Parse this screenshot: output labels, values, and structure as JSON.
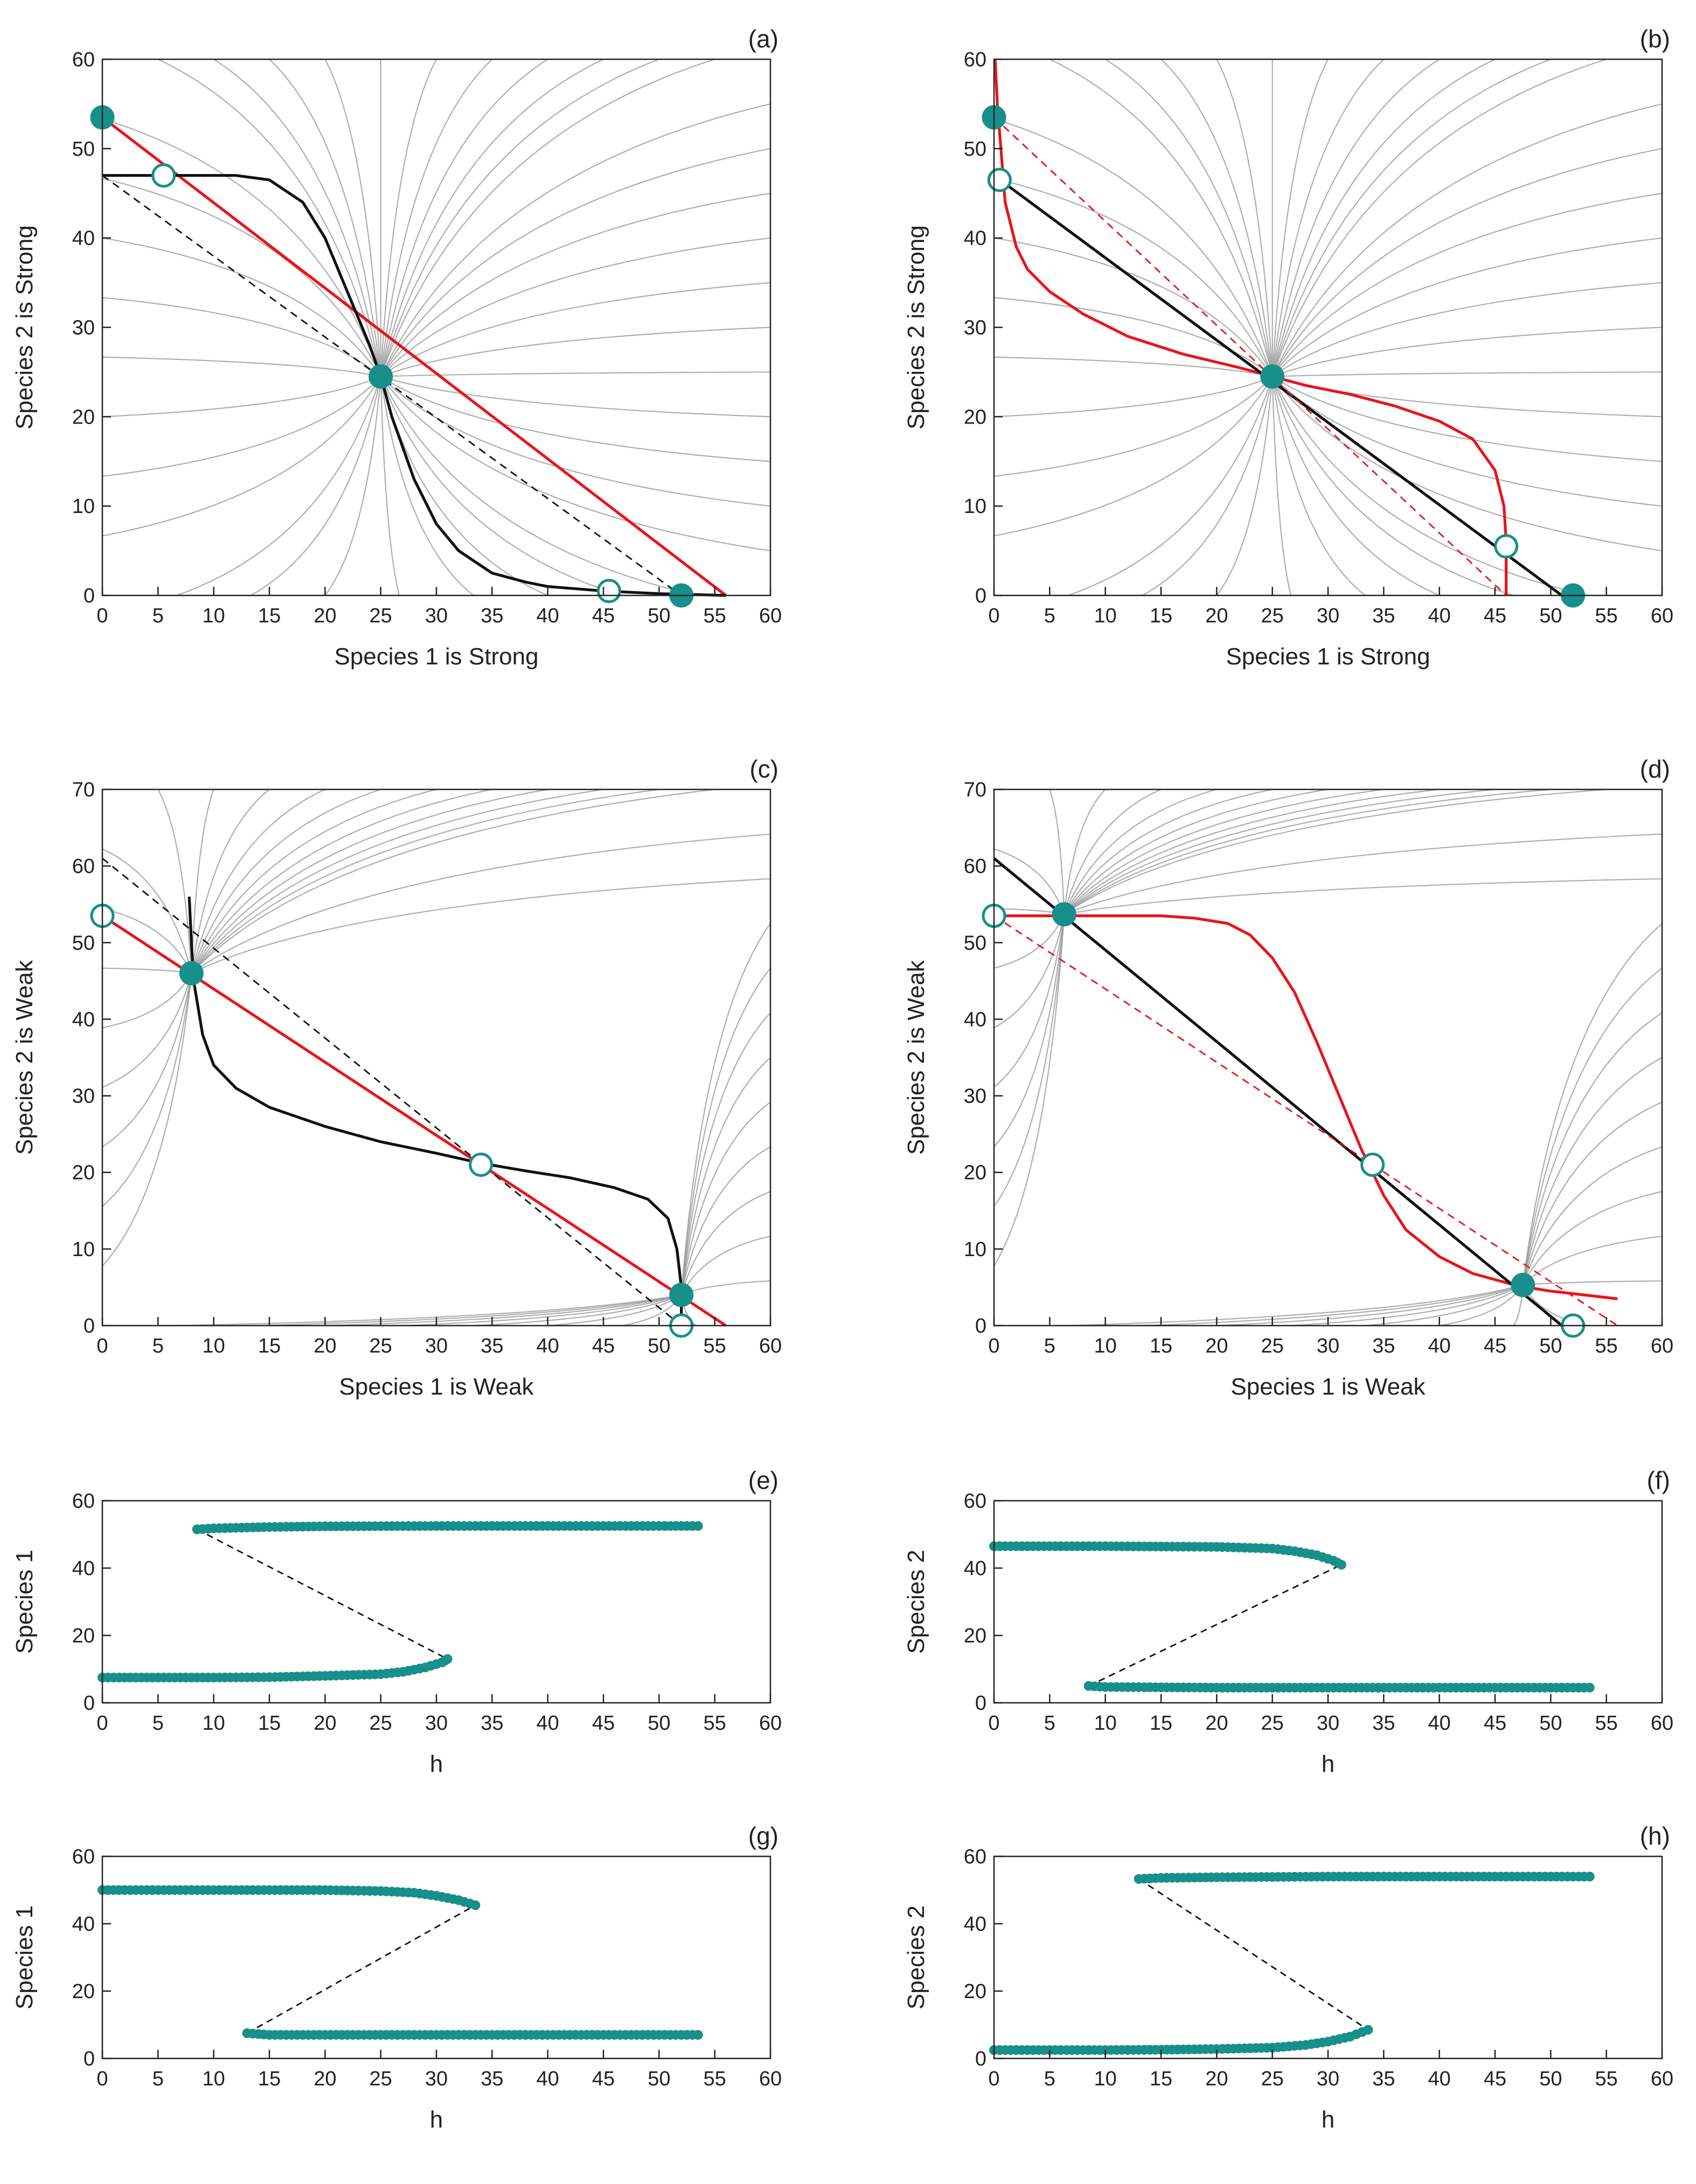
{
  "figure": {
    "colors": {
      "nullcline_red": "#e8141c",
      "nullcline_black": "#111111",
      "trajectory": "#9a9a9a",
      "equilibrium": "#178f8a",
      "dashed": "#111111"
    }
  },
  "chart_data": [
    {
      "id": "a",
      "panel_label": "(a)",
      "type": "line",
      "xlabel": "Species 1 is Strong",
      "ylabel": "Species 2 is Strong",
      "xlim": [
        0,
        60
      ],
      "ylim": [
        0,
        60
      ],
      "xticks": [
        "0",
        "5",
        "10",
        "15",
        "20",
        "25",
        "30",
        "35",
        "40",
        "45",
        "50",
        "55",
        "60"
      ],
      "yticks": [
        "0",
        "10",
        "20",
        "30",
        "40",
        "50",
        "60"
      ],
      "series": [
        {
          "name": "species-1-nullcline",
          "color": "#e8141c",
          "style": "solid",
          "x": [
            0,
            56
          ],
          "y": [
            53.5,
            0
          ]
        },
        {
          "name": "species-2-nullcline",
          "color": "#111111",
          "style": "solid",
          "x": [
            0,
            5,
            10,
            12,
            15,
            18,
            20,
            22,
            24,
            25,
            26,
            28,
            30,
            32,
            35,
            38,
            40,
            45,
            50,
            56
          ],
          "y": [
            47,
            47,
            47,
            47,
            46.5,
            44,
            40,
            34,
            28,
            24.5,
            20,
            13,
            8,
            5,
            2.5,
            1.5,
            1,
            0.5,
            0.2,
            0
          ]
        },
        {
          "name": "reference-line",
          "color": "#111111",
          "style": "dashed",
          "x": [
            0,
            52
          ],
          "y": [
            47,
            0
          ]
        }
      ],
      "equilibria": [
        {
          "x": 0,
          "y": 53.5,
          "stable": true
        },
        {
          "x": 5.5,
          "y": 47,
          "stable": false
        },
        {
          "x": 25,
          "y": 24.5,
          "stable": true
        },
        {
          "x": 45.5,
          "y": 0.5,
          "stable": false
        },
        {
          "x": 52,
          "y": 0,
          "stable": true
        }
      ],
      "trajectories": "converging"
    },
    {
      "id": "b",
      "panel_label": "(b)",
      "type": "line",
      "xlabel": "Species 1 is Strong",
      "ylabel": "Species 2 is Strong",
      "xlim": [
        0,
        60
      ],
      "ylim": [
        0,
        60
      ],
      "xticks": [
        "0",
        "5",
        "10",
        "15",
        "20",
        "25",
        "30",
        "35",
        "40",
        "45",
        "50",
        "55",
        "60"
      ],
      "yticks": [
        "0",
        "10",
        "20",
        "30",
        "40",
        "50",
        "60"
      ],
      "series": [
        {
          "name": "species-1-nullcline",
          "color": "#e8141c",
          "style": "solid",
          "x": [
            0.1,
            0.3,
            1,
            2,
            3,
            5,
            8,
            12,
            17,
            22,
            25,
            28,
            32,
            36,
            40,
            43,
            45,
            45.8,
            46,
            46,
            46
          ],
          "y": [
            60,
            55,
            44,
            39,
            36.5,
            34,
            31.5,
            29,
            27,
            25.5,
            24.5,
            23.5,
            22.5,
            21.2,
            19.5,
            17.5,
            14,
            10,
            6,
            2,
            0
          ]
        },
        {
          "name": "species-2-nullcline",
          "color": "#111111",
          "style": "solid",
          "x": [
            0,
            51
          ],
          "y": [
            47,
            0
          ]
        },
        {
          "name": "reference-line",
          "color": "#e8141c",
          "style": "dashed",
          "x": [
            0,
            46
          ],
          "y": [
            53.5,
            0
          ]
        }
      ],
      "equilibria": [
        {
          "x": 0,
          "y": 53.5,
          "stable": true
        },
        {
          "x": 0.5,
          "y": 46.5,
          "stable": false
        },
        {
          "x": 25,
          "y": 24.5,
          "stable": true
        },
        {
          "x": 46,
          "y": 5.5,
          "stable": false
        },
        {
          "x": 52,
          "y": 0,
          "stable": true
        }
      ],
      "trajectories": "converging"
    },
    {
      "id": "c",
      "panel_label": "(c)",
      "type": "line",
      "xlabel": "Species 1 is Weak",
      "ylabel": "Species 2 is Weak",
      "xlim": [
        0,
        60
      ],
      "ylim": [
        0,
        70
      ],
      "xticks": [
        "0",
        "5",
        "10",
        "15",
        "20",
        "25",
        "30",
        "35",
        "40",
        "45",
        "50",
        "55",
        "60"
      ],
      "yticks": [
        "0",
        "10",
        "20",
        "30",
        "40",
        "50",
        "60",
        "70"
      ],
      "series": [
        {
          "name": "species-1-nullcline",
          "color": "#e8141c",
          "style": "solid",
          "x": [
            0,
            56
          ],
          "y": [
            53.5,
            0
          ]
        },
        {
          "name": "species-2-nullcline",
          "color": "#111111",
          "style": "solid",
          "x": [
            7.8,
            8,
            8.2,
            9,
            10,
            12,
            15,
            20,
            25,
            30,
            34,
            38,
            42,
            46,
            49,
            50.8,
            51.6,
            52,
            52
          ],
          "y": [
            56,
            50,
            45,
            38,
            34,
            31,
            28.5,
            26,
            24,
            22.5,
            21.2,
            20.2,
            19.3,
            18,
            16.5,
            14,
            10,
            5,
            0
          ]
        },
        {
          "name": "reference-line",
          "color": "#111111",
          "style": "dashed",
          "x": [
            0,
            52
          ],
          "y": [
            61,
            0
          ]
        }
      ],
      "equilibria": [
        {
          "x": 0,
          "y": 53.5,
          "stable": false
        },
        {
          "x": 8,
          "y": 46,
          "stable": true
        },
        {
          "x": 34,
          "y": 21,
          "stable": false
        },
        {
          "x": 52,
          "y": 0,
          "stable": false
        },
        {
          "x": 52,
          "y": 4,
          "stable": true
        }
      ],
      "trajectories": "converging"
    },
    {
      "id": "d",
      "panel_label": "(d)",
      "type": "line",
      "xlabel": "Species 1 is Weak",
      "ylabel": "Species 2 is Weak",
      "xlim": [
        0,
        60
      ],
      "ylim": [
        0,
        70
      ],
      "xticks": [
        "0",
        "5",
        "10",
        "15",
        "20",
        "25",
        "30",
        "35",
        "40",
        "45",
        "50",
        "55",
        "60"
      ],
      "yticks": [
        "0",
        "10",
        "20",
        "30",
        "40",
        "50",
        "60",
        "70"
      ],
      "series": [
        {
          "name": "species-1-nullcline",
          "color": "#e8141c",
          "style": "solid",
          "x": [
            0,
            5,
            10,
            15,
            18,
            21,
            23,
            25,
            27,
            29,
            31,
            33,
            35,
            37,
            40,
            43,
            47,
            50,
            53,
            56
          ],
          "y": [
            53.5,
            53.5,
            53.5,
            53.5,
            53.2,
            52.5,
            51,
            48,
            43.5,
            37,
            30,
            23,
            17,
            12.5,
            9,
            6.8,
            5.2,
            4.5,
            4,
            3.5
          ]
        },
        {
          "name": "species-2-nullcline",
          "color": "#111111",
          "style": "solid",
          "x": [
            0,
            51
          ],
          "y": [
            61,
            0
          ]
        },
        {
          "name": "reference-line",
          "color": "#e8141c",
          "style": "dashed",
          "x": [
            0,
            56
          ],
          "y": [
            53.5,
            0
          ]
        }
      ],
      "equilibria": [
        {
          "x": 0,
          "y": 53.5,
          "stable": false
        },
        {
          "x": 6.3,
          "y": 53.7,
          "stable": true
        },
        {
          "x": 34,
          "y": 21,
          "stable": false
        },
        {
          "x": 47.5,
          "y": 5.3,
          "stable": true
        },
        {
          "x": 52,
          "y": 0,
          "stable": false
        }
      ],
      "trajectories": "converging"
    },
    {
      "id": "e",
      "panel_label": "(e)",
      "type": "scatter",
      "xlabel": "h",
      "ylabel": "Species 1",
      "xlim": [
        0,
        60
      ],
      "ylim": [
        0,
        60
      ],
      "xticks": [
        "0",
        "5",
        "10",
        "15",
        "20",
        "25",
        "30",
        "35",
        "40",
        "45",
        "50",
        "55",
        "60"
      ],
      "yticks": [
        "0",
        "20",
        "40",
        "60"
      ],
      "branches": [
        {
          "name": "lower-branch",
          "x": [
            0,
            5,
            10,
            15,
            20,
            25,
            27,
            29,
            30.5,
            31
          ],
          "y": [
            7.5,
            7.5,
            7.5,
            7.6,
            8,
            8.5,
            9.2,
            10.5,
            12,
            13
          ]
        },
        {
          "name": "upper-branch",
          "x": [
            8.5,
            10,
            15,
            20,
            30,
            40,
            53.5
          ],
          "y": [
            51.5,
            51.8,
            52.2,
            52.4,
            52.5,
            52.5,
            52.5
          ]
        }
      ],
      "dashed": {
        "x": [
          8.5,
          31
        ],
        "y": [
          51.5,
          13
        ]
      }
    },
    {
      "id": "f",
      "panel_label": "(f)",
      "type": "scatter",
      "xlabel": "h",
      "ylabel": "Species 2",
      "xlim": [
        0,
        60
      ],
      "ylim": [
        0,
        60
      ],
      "xticks": [
        "0",
        "5",
        "10",
        "15",
        "20",
        "25",
        "30",
        "35",
        "40",
        "45",
        "50",
        "55",
        "60"
      ],
      "yticks": [
        "0",
        "20",
        "40",
        "60"
      ],
      "branches": [
        {
          "name": "upper-branch",
          "x": [
            0,
            5,
            10,
            15,
            20,
            25,
            27,
            29,
            30.5,
            31.2
          ],
          "y": [
            46.5,
            46.5,
            46.5,
            46.4,
            46.3,
            45.8,
            45,
            43.8,
            42.2,
            41
          ]
        },
        {
          "name": "lower-branch",
          "x": [
            8.5,
            10,
            20,
            30,
            40,
            53.5
          ],
          "y": [
            5,
            4.7,
            4.5,
            4.5,
            4.5,
            4.5
          ]
        }
      ],
      "dashed": {
        "x": [
          8.5,
          31.2
        ],
        "y": [
          5,
          41
        ]
      }
    },
    {
      "id": "g",
      "panel_label": "(g)",
      "type": "scatter",
      "xlabel": "h",
      "ylabel": "Species 1",
      "xlim": [
        0,
        60
      ],
      "ylim": [
        0,
        60
      ],
      "xticks": [
        "0",
        "5",
        "10",
        "15",
        "20",
        "25",
        "30",
        "35",
        "40",
        "45",
        "50",
        "55",
        "60"
      ],
      "yticks": [
        "0",
        "20",
        "40",
        "60"
      ],
      "branches": [
        {
          "name": "upper-branch",
          "x": [
            0,
            5,
            10,
            15,
            20,
            25,
            28,
            30,
            32,
            33.5
          ],
          "y": [
            50,
            50,
            50,
            50,
            50,
            49.7,
            49.2,
            48.3,
            47,
            45.5
          ]
        },
        {
          "name": "lower-branch",
          "x": [
            13,
            15,
            20,
            30,
            40,
            53.5
          ],
          "y": [
            7.5,
            7,
            7,
            7,
            7,
            7
          ]
        }
      ],
      "dashed": {
        "x": [
          13,
          33.5
        ],
        "y": [
          7.5,
          45.5
        ]
      }
    },
    {
      "id": "h",
      "panel_label": "(h)",
      "type": "scatter",
      "xlabel": "h",
      "ylabel": "Species 2",
      "xlim": [
        0,
        60
      ],
      "ylim": [
        0,
        60
      ],
      "xticks": [
        "0",
        "5",
        "10",
        "15",
        "20",
        "25",
        "30",
        "35",
        "40",
        "45",
        "50",
        "55",
        "60"
      ],
      "yticks": [
        "0",
        "20",
        "40",
        "60"
      ],
      "branches": [
        {
          "name": "lower-branch",
          "x": [
            0,
            5,
            10,
            15,
            20,
            25,
            28,
            30,
            32,
            33.6
          ],
          "y": [
            2.5,
            2.5,
            2.5,
            2.6,
            2.8,
            3.2,
            4,
            5,
            6.5,
            8.5
          ]
        },
        {
          "name": "upper-branch",
          "x": [
            13,
            15,
            20,
            30,
            40,
            53.5
          ],
          "y": [
            53.3,
            53.6,
            53.8,
            54,
            54,
            54
          ]
        }
      ],
      "dashed": {
        "x": [
          13,
          33.6
        ],
        "y": [
          53.3,
          8.5
        ]
      }
    }
  ]
}
